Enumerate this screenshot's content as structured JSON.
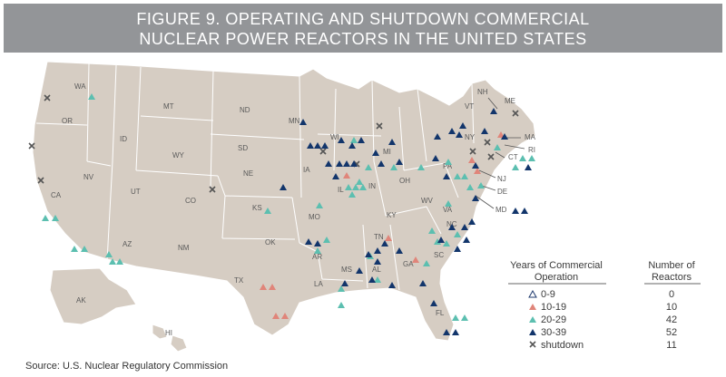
{
  "figure": {
    "title_line1": "FIGURE 9. OPERATING AND SHUTDOWN COMMERCIAL",
    "title_line2": "NUCLEAR POWER REACTORS IN THE UNITED STATES",
    "source": "Source: U.S. Nuclear Regulatory Commission"
  },
  "colors": {
    "land": "#d6cdc3",
    "border": "#ffffff",
    "banner": "#939598",
    "cat_0_9": "#1f3a6e",
    "cat_10_19": "#e0857a",
    "cat_20_29": "#5cbfb0",
    "cat_30_39": "#12356b",
    "shutdown": "#555555"
  },
  "legend": {
    "heading_left_1": "Years of Commercial",
    "heading_left_2": "Operation",
    "heading_right_1": "Number of",
    "heading_right_2": "Reactors",
    "rows": [
      {
        "label": "0-9",
        "count": "0",
        "marker": "open-triangle"
      },
      {
        "label": "10-19",
        "count": "10",
        "marker": "salmon-triangle"
      },
      {
        "label": "20-29",
        "count": "42",
        "marker": "teal-triangle"
      },
      {
        "label": "30-39",
        "count": "52",
        "marker": "navy-triangle"
      },
      {
        "label": "shutdown",
        "count": "11",
        "marker": "x-mark"
      }
    ]
  },
  "state_labels": [
    "WA",
    "OR",
    "ID",
    "MT",
    "ND",
    "WY",
    "SD",
    "NV",
    "CA",
    "UT",
    "CO",
    "NE",
    "KS",
    "AZ",
    "NM",
    "OK",
    "TX",
    "AK",
    "HI",
    "MN",
    "WI",
    "IA",
    "MO",
    "AR",
    "LA",
    "MS",
    "AL",
    "TN",
    "KY",
    "IL",
    "IN",
    "MI",
    "OH",
    "WV",
    "VA",
    "NC",
    "SC",
    "GA",
    "FL",
    "PA",
    "NY",
    "VT",
    "NH",
    "ME",
    "MA",
    "RI",
    "CT",
    "NJ",
    "DE",
    "MD"
  ]
}
